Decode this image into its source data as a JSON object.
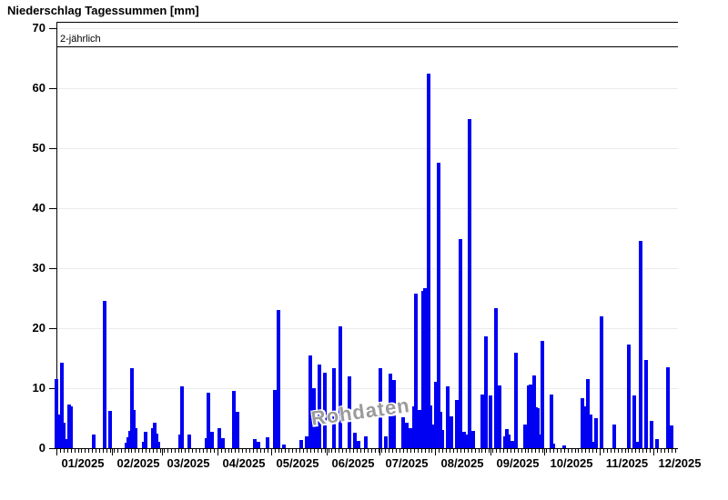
{
  "title": "Niederschlag Tagessummen [mm]",
  "watermark": "Rohdaten",
  "chart_data": {
    "type": "bar",
    "title": "Niederschlag Tagessummen [mm]",
    "ylabel": "",
    "xlabel": "",
    "ylim": [
      0,
      70
    ],
    "yticks": [
      0,
      10,
      20,
      30,
      40,
      50,
      60,
      70
    ],
    "grid": "horizontal-light",
    "legend": "none",
    "bar_color": "#0000f2",
    "reference_line": {
      "value": 67,
      "label": "2-jährlich"
    },
    "x_axis": {
      "unit": "day-of-year-2025",
      "month_labels": [
        "01/2025",
        "02/2025",
        "03/2025",
        "04/2025",
        "05/2025",
        "06/2025",
        "07/2025",
        "08/2025",
        "09/2025",
        "10/2025",
        "11/2025",
        "12/2025"
      ],
      "month_start_days": [
        1,
        32,
        60,
        91,
        121,
        152,
        182,
        213,
        244,
        274,
        305,
        335
      ],
      "minor_tick_every_days": 2
    },
    "points_format": [
      "day_of_year",
      "precipitation_mm"
    ],
    "points": [
      [
        1,
        11.5
      ],
      [
        2,
        5.6
      ],
      [
        4,
        14.3
      ],
      [
        5,
        4.2
      ],
      [
        6,
        1.5
      ],
      [
        8,
        7.3
      ],
      [
        9,
        6.9
      ],
      [
        22,
        2.3
      ],
      [
        28,
        24.5
      ],
      [
        31,
        6.2
      ],
      [
        40,
        0.9
      ],
      [
        41,
        1.8
      ],
      [
        42,
        2.9
      ],
      [
        43,
        13.3
      ],
      [
        44,
        6.3
      ],
      [
        45,
        3.4
      ],
      [
        50,
        1.0
      ],
      [
        51,
        2.8
      ],
      [
        55,
        3.4
      ],
      [
        56,
        4.3
      ],
      [
        57,
        2.4
      ],
      [
        58,
        1.1
      ],
      [
        70,
        2.3
      ],
      [
        71,
        10.3
      ],
      [
        75,
        2.3
      ],
      [
        85,
        1.6
      ],
      [
        86,
        9.2
      ],
      [
        88,
        2.8
      ],
      [
        92,
        3.4
      ],
      [
        94,
        1.7
      ],
      [
        100,
        9.5
      ],
      [
        102,
        6.0
      ],
      [
        112,
        1.5
      ],
      [
        114,
        1.0
      ],
      [
        119,
        1.8
      ],
      [
        123,
        9.7
      ],
      [
        125,
        23.0
      ],
      [
        128,
        0.6
      ],
      [
        138,
        1.4
      ],
      [
        141,
        2.0
      ],
      [
        143,
        15.5
      ],
      [
        145,
        10.0
      ],
      [
        146,
        4.5
      ],
      [
        148,
        13.9
      ],
      [
        151,
        12.6
      ],
      [
        156,
        13.3
      ],
      [
        160,
        20.3
      ],
      [
        165,
        12.0
      ],
      [
        168,
        2.5
      ],
      [
        170,
        1.2
      ],
      [
        174,
        2.0
      ],
      [
        182,
        13.4
      ],
      [
        185,
        2.0
      ],
      [
        188,
        12.4
      ],
      [
        190,
        11.4
      ],
      [
        195,
        5.2
      ],
      [
        197,
        4.2
      ],
      [
        199,
        3.3
      ],
      [
        201,
        7.0
      ],
      [
        202,
        25.8
      ],
      [
        204,
        6.3
      ],
      [
        206,
        26.2
      ],
      [
        207,
        26.6
      ],
      [
        209,
        62.4
      ],
      [
        210,
        7.1
      ],
      [
        211,
        4.0
      ],
      [
        213,
        11.1
      ],
      [
        215,
        47.6
      ],
      [
        216,
        6.0
      ],
      [
        217,
        3.0
      ],
      [
        220,
        10.3
      ],
      [
        222,
        5.3
      ],
      [
        225,
        8.0
      ],
      [
        227,
        34.9
      ],
      [
        229,
        2.7
      ],
      [
        230,
        2.3
      ],
      [
        232,
        54.8
      ],
      [
        234,
        2.9
      ],
      [
        239,
        9.0
      ],
      [
        241,
        18.6
      ],
      [
        244,
        8.8
      ],
      [
        247,
        23.4
      ],
      [
        249,
        10.4
      ],
      [
        252,
        2.0
      ],
      [
        253,
        3.2
      ],
      [
        254,
        2.3
      ],
      [
        256,
        1.2
      ],
      [
        258,
        15.9
      ],
      [
        263,
        4.0
      ],
      [
        265,
        10.4
      ],
      [
        266,
        10.6
      ],
      [
        268,
        12.1
      ],
      [
        269,
        6.8
      ],
      [
        270,
        6.6
      ],
      [
        271,
        2.2
      ],
      [
        273,
        17.9
      ],
      [
        278,
        8.9
      ],
      [
        279,
        0.8
      ],
      [
        285,
        0.5
      ],
      [
        295,
        8.4
      ],
      [
        296,
        7.0
      ],
      [
        298,
        11.5
      ],
      [
        299,
        1.5
      ],
      [
        300,
        5.6
      ],
      [
        301,
        1.0
      ],
      [
        303,
        5.0
      ],
      [
        306,
        22.0
      ],
      [
        313,
        4.0
      ],
      [
        321,
        17.2
      ],
      [
        324,
        8.8
      ],
      [
        326,
        1.0
      ],
      [
        328,
        34.5
      ],
      [
        331,
        14.7
      ],
      [
        334,
        4.5
      ],
      [
        337,
        1.5
      ],
      [
        343,
        13.5
      ],
      [
        345,
        3.8
      ]
    ]
  }
}
